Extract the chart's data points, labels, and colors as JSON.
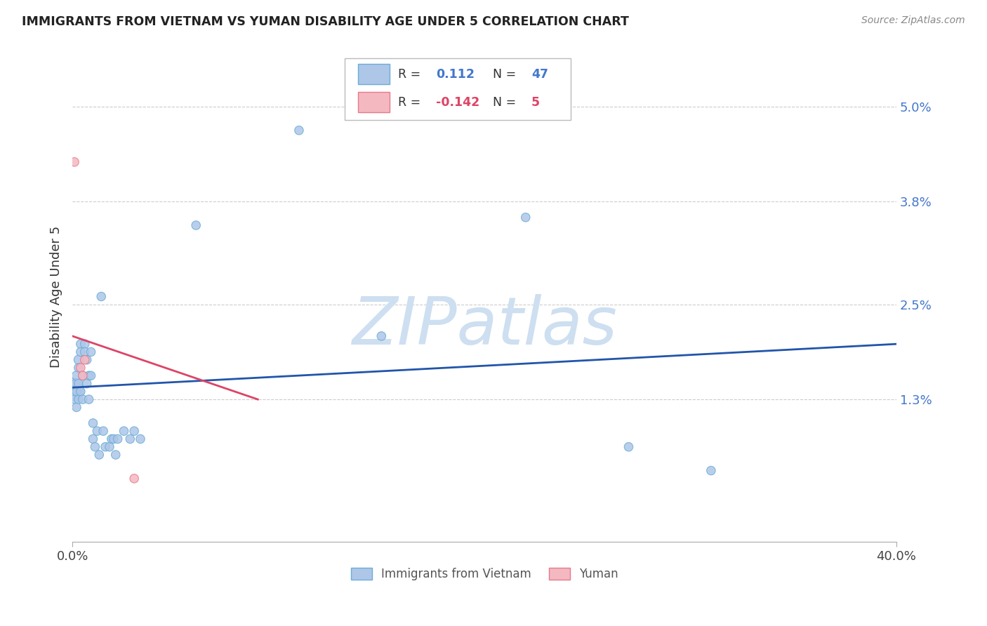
{
  "title": "IMMIGRANTS FROM VIETNAM VS YUMAN DISABILITY AGE UNDER 5 CORRELATION CHART",
  "source": "Source: ZipAtlas.com",
  "ylabel": "Disability Age Under 5",
  "ytick_labels": [
    "5.0%",
    "3.8%",
    "2.5%",
    "1.3%"
  ],
  "ytick_values": [
    0.05,
    0.038,
    0.025,
    0.013
  ],
  "xlim": [
    0.0,
    0.4
  ],
  "ylim": [
    -0.005,
    0.057
  ],
  "legend_r_blue": "0.112",
  "legend_n_blue": "47",
  "legend_r_pink": "-0.142",
  "legend_n_pink": "5",
  "blue_scatter_x": [
    0.001,
    0.001,
    0.001,
    0.002,
    0.002,
    0.002,
    0.002,
    0.003,
    0.003,
    0.003,
    0.003,
    0.004,
    0.004,
    0.004,
    0.005,
    0.005,
    0.006,
    0.006,
    0.007,
    0.007,
    0.008,
    0.008,
    0.009,
    0.009,
    0.01,
    0.01,
    0.011,
    0.012,
    0.013,
    0.014,
    0.015,
    0.016,
    0.018,
    0.019,
    0.02,
    0.021,
    0.022,
    0.025,
    0.028,
    0.03,
    0.033,
    0.06,
    0.11,
    0.15,
    0.22,
    0.27,
    0.31
  ],
  "blue_scatter_y": [
    0.014,
    0.015,
    0.013,
    0.015,
    0.016,
    0.014,
    0.012,
    0.018,
    0.017,
    0.015,
    0.013,
    0.02,
    0.019,
    0.014,
    0.016,
    0.013,
    0.02,
    0.019,
    0.018,
    0.015,
    0.016,
    0.013,
    0.019,
    0.016,
    0.01,
    0.008,
    0.007,
    0.009,
    0.006,
    0.026,
    0.009,
    0.007,
    0.007,
    0.008,
    0.008,
    0.006,
    0.008,
    0.009,
    0.008,
    0.009,
    0.008,
    0.035,
    0.047,
    0.021,
    0.036,
    0.007,
    0.004
  ],
  "blue_scatter_sizes": [
    350,
    120,
    80,
    100,
    90,
    80,
    80,
    90,
    80,
    80,
    80,
    80,
    80,
    80,
    80,
    80,
    80,
    80,
    80,
    80,
    80,
    80,
    80,
    80,
    80,
    80,
    80,
    80,
    80,
    80,
    80,
    80,
    80,
    80,
    80,
    80,
    80,
    80,
    80,
    80,
    80,
    80,
    80,
    80,
    80,
    80,
    80
  ],
  "pink_scatter_x": [
    0.001,
    0.004,
    0.005,
    0.006,
    0.03
  ],
  "pink_scatter_y": [
    0.043,
    0.017,
    0.016,
    0.018,
    0.003
  ],
  "pink_scatter_sizes": [
    80,
    80,
    80,
    80,
    80
  ],
  "blue_line_x": [
    0.0,
    0.4
  ],
  "blue_line_y": [
    0.0145,
    0.02
  ],
  "pink_line_x": [
    0.0,
    0.09
  ],
  "pink_line_y": [
    0.021,
    0.013
  ],
  "blue_color": "#aec6e8",
  "blue_edge": "#6aaed6",
  "pink_color": "#f4b8c1",
  "pink_edge": "#e87a8a",
  "blue_line_color": "#2255aa",
  "pink_line_color": "#dd4466",
  "watermark": "ZIPatlas",
  "watermark_color": "#cddff0",
  "grid_color": "#cccccc",
  "bg_color": "#ffffff",
  "bottom_legend_labels": [
    "Immigrants from Vietnam",
    "Yuman"
  ]
}
